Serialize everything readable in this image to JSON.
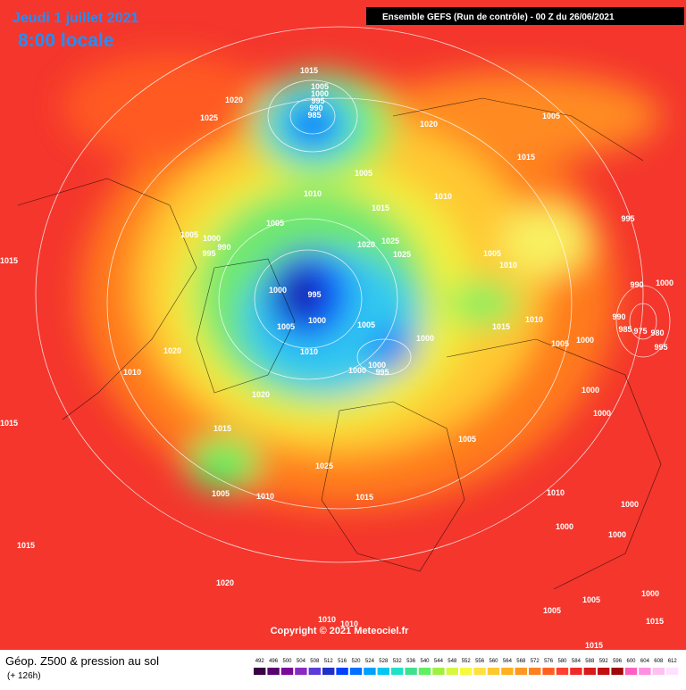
{
  "header": {
    "date": "Jeudi 1 juillet 2021",
    "time": "8:00 locale",
    "run": "Ensemble GEFS  (Run de contrôle)  -  00 Z du 26/06/2021"
  },
  "map": {
    "copyright": "Copyright © 2021 Meteociel.fr",
    "isobar_labels": [
      "1015",
      "1005",
      "1000",
      "995",
      "990",
      "985",
      "1020",
      "1025",
      "1020",
      "1005",
      "1015",
      "1005",
      "1010",
      "1015",
      "1010",
      "995",
      "1005",
      "1005",
      "1000",
      "990",
      "995",
      "1020",
      "1025",
      "1025",
      "1015",
      "1005",
      "1010",
      "990",
      "1000",
      "1000",
      "995",
      "1000",
      "1005",
      "1005",
      "1000",
      "1015",
      "1010",
      "990",
      "985",
      "975",
      "980",
      "995",
      "1005",
      "1000",
      "1020",
      "1010",
      "1010",
      "1000",
      "1000",
      "995",
      "1020",
      "1000",
      "1015",
      "1015",
      "1000",
      "1005",
      "1025",
      "1005",
      "1010",
      "1015",
      "1010",
      "1000",
      "1000",
      "1000",
      "1015",
      "1020",
      "1000",
      "1005",
      "1005",
      "1010",
      "1010",
      "1015",
      "1015"
    ]
  },
  "footer": {
    "title": "Géop. Z500 & pression au sol",
    "lead": "(+ 126h)"
  },
  "colorbar": {
    "ticks": [
      492,
      496,
      500,
      504,
      508,
      512,
      516,
      520,
      524,
      528,
      532,
      536,
      540,
      544,
      548,
      552,
      556,
      560,
      564,
      568,
      572,
      576,
      580,
      584,
      588,
      592,
      596,
      600,
      604,
      608,
      612
    ],
    "colors": [
      "#3b0045",
      "#5a0070",
      "#7a0a9a",
      "#8a2ac0",
      "#5a3cd8",
      "#2030c8",
      "#0040ff",
      "#0070ff",
      "#00a0ff",
      "#00c8f0",
      "#20e0c8",
      "#40e090",
      "#60f060",
      "#a0f040",
      "#d8f840",
      "#f8f840",
      "#ffe040",
      "#ffc830",
      "#ffb020",
      "#ff9820",
      "#ff8020",
      "#ff6020",
      "#ff4030",
      "#f02a2a",
      "#d81c1c",
      "#c01010",
      "#a00808",
      "#ff60c0",
      "#ff90e0",
      "#ffc0f0",
      "#ffe0ff"
    ]
  }
}
